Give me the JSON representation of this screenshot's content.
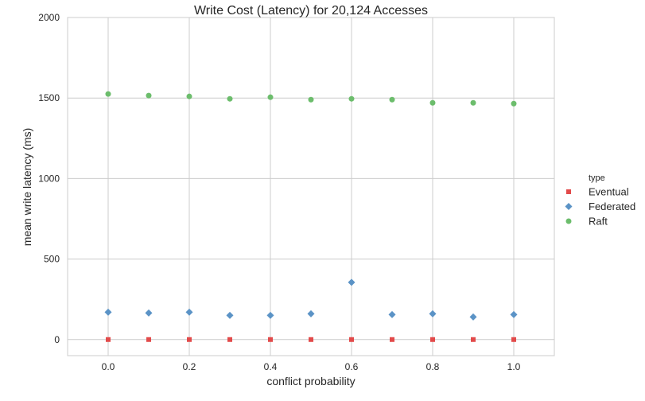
{
  "chart_data": {
    "type": "scatter",
    "title": "Write Cost (Latency) for 20,124 Accesses",
    "xlabel": "conflict probability",
    "ylabel": "mean write latency (ms)",
    "xlim": [
      -0.1,
      1.1
    ],
    "ylim": [
      -100,
      2000
    ],
    "xticks": [
      0.0,
      0.2,
      0.4,
      0.6,
      0.8,
      1.0
    ],
    "xtick_labels": [
      "0.0",
      "0.2",
      "0.4",
      "0.6",
      "0.8",
      "1.0"
    ],
    "yticks": [
      0,
      500,
      1000,
      1500,
      2000
    ],
    "ytick_labels": [
      "0",
      "500",
      "1000",
      "1500",
      "2000"
    ],
    "grid": true,
    "legend": {
      "title": "type",
      "placement": "right-outside"
    },
    "x": [
      0.0,
      0.1,
      0.2,
      0.3,
      0.4,
      0.5,
      0.6,
      0.7,
      0.8,
      0.9,
      1.0
    ],
    "series": [
      {
        "name": "Eventual",
        "marker": "square",
        "color": "#e24a4a",
        "values": [
          0,
          0,
          0,
          0,
          0,
          0,
          0,
          0,
          0,
          0,
          0
        ]
      },
      {
        "name": "Federated",
        "marker": "diamond",
        "color": "#5b93c6",
        "values": [
          170,
          165,
          170,
          150,
          150,
          160,
          355,
          155,
          160,
          140,
          155
        ]
      },
      {
        "name": "Raft",
        "marker": "circle",
        "color": "#6cbd6c",
        "values": [
          1525,
          1515,
          1510,
          1495,
          1505,
          1490,
          1495,
          1490,
          1470,
          1470,
          1465
        ]
      }
    ]
  }
}
